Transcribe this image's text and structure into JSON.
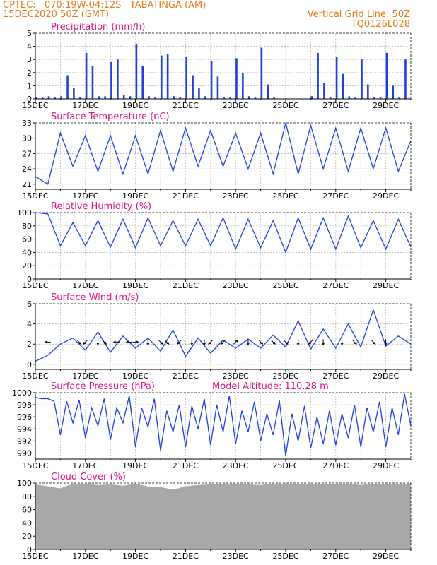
{
  "header": {
    "line1_left": "CPTEC:   070:19W-04:12S   TABATINGA (AM)",
    "line2_left": "15DEC2020 50Z (GMT)",
    "line2_right": "Vertical Grid Line: 50Z",
    "line3_right": "TQ0126L028",
    "color": "#e07a12"
  },
  "colors": {
    "series": "#1f3fe0",
    "title": "#e0107e",
    "cloud_fill": "#a8a8a8",
    "grid": "#b0b0b0"
  },
  "x_ticks": [
    "15DEC",
    "17DEC",
    "19DEC",
    "21DEC",
    "23DEC",
    "25DEC",
    "27DEC",
    "29DEC"
  ],
  "chart_data": [
    {
      "id": "precip",
      "type": "bar",
      "title": "Precipitation (mm/h)",
      "ylim": [
        0,
        5
      ],
      "yticks": [
        0,
        1,
        2,
        3,
        4,
        5
      ],
      "x": [
        "15DEC 00Z",
        "15DEC 06Z",
        "15DEC 12Z",
        "15DEC 18Z",
        "16DEC 00Z",
        "16DEC 06Z",
        "16DEC 12Z",
        "16DEC 18Z",
        "17DEC 00Z",
        "17DEC 06Z",
        "17DEC 12Z",
        "17DEC 18Z",
        "18DEC 00Z",
        "18DEC 06Z",
        "18DEC 12Z",
        "18DEC 18Z",
        "19DEC 00Z",
        "19DEC 06Z",
        "19DEC 12Z",
        "19DEC 18Z",
        "20DEC 00Z",
        "20DEC 06Z",
        "20DEC 12Z",
        "20DEC 18Z",
        "21DEC 00Z",
        "21DEC 06Z",
        "21DEC 12Z",
        "21DEC 18Z",
        "22DEC 00Z",
        "22DEC 06Z",
        "22DEC 12Z",
        "22DEC 18Z",
        "23DEC 00Z",
        "23DEC 06Z",
        "23DEC 12Z",
        "23DEC 18Z",
        "24DEC 00Z",
        "24DEC 06Z",
        "24DEC 12Z",
        "24DEC 18Z",
        "25DEC 00Z",
        "25DEC 06Z",
        "25DEC 12Z",
        "25DEC 18Z",
        "26DEC 00Z",
        "26DEC 06Z",
        "26DEC 12Z",
        "26DEC 18Z",
        "27DEC 00Z",
        "27DEC 06Z",
        "27DEC 12Z",
        "27DEC 18Z",
        "28DEC 00Z",
        "28DEC 06Z",
        "28DEC 12Z",
        "28DEC 18Z",
        "29DEC 00Z",
        "29DEC 06Z",
        "29DEC 12Z",
        "29DEC 18Z"
      ],
      "values": [
        0.1,
        0.1,
        0.2,
        0.1,
        0.2,
        1.8,
        0.8,
        0.1,
        3.5,
        2.5,
        0.2,
        0.2,
        2.8,
        3.0,
        0.3,
        0.2,
        4.2,
        2.5,
        0.2,
        0.1,
        3.3,
        3.4,
        0.2,
        0.1,
        3.2,
        1.8,
        0.8,
        0.2,
        2.9,
        1.7,
        0.1,
        0.1,
        3.1,
        2.0,
        0.2,
        0.1,
        3.9,
        1.1,
        0.1,
        0,
        0,
        0,
        0,
        0,
        0.2,
        3.5,
        1.2,
        0.1,
        3.2,
        1.9,
        0.2,
        0.1,
        3.0,
        1.1,
        0.1,
        0.1,
        3.5,
        1.0,
        0.1,
        3.0
      ]
    },
    {
      "id": "temp",
      "type": "line",
      "title": "Surface Temperature (nC)",
      "ylim": [
        20,
        33
      ],
      "yticks": [
        21,
        24,
        27,
        30,
        33
      ],
      "x": [
        "15DEC 00Z",
        "15DEC 12Z",
        "16DEC 00Z",
        "16DEC 12Z",
        "17DEC 00Z",
        "17DEC 12Z",
        "18DEC 00Z",
        "18DEC 12Z",
        "19DEC 00Z",
        "19DEC 12Z",
        "20DEC 00Z",
        "20DEC 12Z",
        "21DEC 00Z",
        "21DEC 12Z",
        "22DEC 00Z",
        "22DEC 12Z",
        "23DEC 00Z",
        "23DEC 12Z",
        "24DEC 00Z",
        "24DEC 12Z",
        "25DEC 00Z",
        "25DEC 12Z",
        "26DEC 00Z",
        "26DEC 12Z",
        "27DEC 00Z",
        "27DEC 12Z",
        "28DEC 00Z",
        "28DEC 12Z",
        "29DEC 00Z",
        "29DEC 12Z",
        "30DEC 00Z"
      ],
      "values": [
        22.5,
        21.0,
        31.0,
        24.5,
        30.5,
        23.5,
        30.5,
        23.0,
        30.5,
        23.0,
        31.5,
        23.5,
        32.0,
        24.5,
        31.5,
        24.5,
        31.0,
        24.0,
        31.0,
        23.0,
        33.0,
        23.0,
        32.5,
        24.0,
        32.0,
        23.5,
        32.0,
        24.0,
        32.0,
        23.5,
        29.5
      ]
    },
    {
      "id": "rh",
      "type": "line",
      "title": "Relative Humidity (%)",
      "ylim": [
        0,
        100
      ],
      "yticks": [
        0,
        20,
        40,
        60,
        80,
        100
      ],
      "x": [
        "15DEC 00Z",
        "15DEC 12Z",
        "16DEC 00Z",
        "16DEC 12Z",
        "17DEC 00Z",
        "17DEC 12Z",
        "18DEC 00Z",
        "18DEC 12Z",
        "19DEC 00Z",
        "19DEC 12Z",
        "20DEC 00Z",
        "20DEC 12Z",
        "21DEC 00Z",
        "21DEC 12Z",
        "22DEC 00Z",
        "22DEC 12Z",
        "23DEC 00Z",
        "23DEC 12Z",
        "24DEC 00Z",
        "24DEC 12Z",
        "25DEC 00Z",
        "25DEC 12Z",
        "26DEC 00Z",
        "26DEC 12Z",
        "27DEC 00Z",
        "27DEC 12Z",
        "28DEC 00Z",
        "28DEC 12Z",
        "29DEC 00Z",
        "29DEC 12Z",
        "30DEC 00Z"
      ],
      "values": [
        100,
        98,
        50,
        85,
        50,
        88,
        48,
        90,
        47,
        92,
        50,
        88,
        50,
        90,
        50,
        92,
        45,
        90,
        47,
        88,
        40,
        92,
        45,
        92,
        45,
        95,
        47,
        88,
        45,
        90,
        48
      ]
    },
    {
      "id": "wind",
      "type": "line",
      "title": "Surface Wind (m/s)",
      "ylim": [
        -0.5,
        6
      ],
      "yticks": [
        0,
        2,
        4,
        6
      ],
      "x": [
        "15DEC 00Z",
        "15DEC 12Z",
        "16DEC 00Z",
        "16DEC 12Z",
        "17DEC 00Z",
        "17DEC 12Z",
        "18DEC 00Z",
        "18DEC 12Z",
        "19DEC 00Z",
        "19DEC 12Z",
        "20DEC 00Z",
        "20DEC 12Z",
        "21DEC 00Z",
        "21DEC 12Z",
        "22DEC 00Z",
        "22DEC 12Z",
        "23DEC 00Z",
        "23DEC 12Z",
        "24DEC 00Z",
        "24DEC 12Z",
        "25DEC 00Z",
        "25DEC 12Z",
        "26DEC 00Z",
        "26DEC 12Z",
        "27DEC 00Z",
        "27DEC 12Z",
        "28DEC 00Z",
        "28DEC 12Z",
        "29DEC 00Z",
        "29DEC 12Z",
        "30DEC 00Z"
      ],
      "values": [
        0.3,
        0.9,
        2.0,
        2.6,
        1.4,
        3.2,
        1.2,
        2.8,
        1.6,
        2.6,
        1.3,
        3.4,
        0.8,
        2.6,
        1.1,
        2.4,
        1.6,
        2.5,
        1.6,
        2.9,
        1.7,
        4.3,
        1.5,
        3.5,
        1.6,
        4.0,
        1.7,
        5.4,
        1.8,
        2.8,
        2.0
      ],
      "arrows": [
        {
          "x": "15DEC 12Z",
          "dir": "W"
        },
        {
          "x": "16DEC 18Z",
          "dir": "SE"
        },
        {
          "x": "17DEC 00Z",
          "dir": "SW"
        },
        {
          "x": "17DEC 12Z",
          "dir": "S"
        },
        {
          "x": "17DEC 18Z",
          "dir": "SE"
        },
        {
          "x": "18DEC 06Z",
          "dir": "W"
        },
        {
          "x": "18DEC 18Z",
          "dir": "W"
        },
        {
          "x": "19DEC 00Z",
          "dir": "E"
        },
        {
          "x": "19DEC 12Z",
          "dir": "S"
        },
        {
          "x": "20DEC 00Z",
          "dir": "SE"
        },
        {
          "x": "20DEC 06Z",
          "dir": "SE"
        },
        {
          "x": "20DEC 18Z",
          "dir": "SW"
        },
        {
          "x": "21DEC 06Z",
          "dir": "S"
        },
        {
          "x": "21DEC 18Z",
          "dir": "S"
        },
        {
          "x": "22DEC 00Z",
          "dir": "SW"
        },
        {
          "x": "22DEC 12Z",
          "dir": "SW"
        },
        {
          "x": "23DEC 00Z",
          "dir": "NE"
        },
        {
          "x": "23DEC 12Z",
          "dir": "S"
        },
        {
          "x": "24DEC 00Z",
          "dir": "SE"
        },
        {
          "x": "24DEC 12Z",
          "dir": "SE"
        },
        {
          "x": "25DEC 00Z",
          "dir": "SE"
        },
        {
          "x": "25DEC 12Z",
          "dir": "S"
        },
        {
          "x": "26DEC 00Z",
          "dir": "SW"
        },
        {
          "x": "26DEC 12Z",
          "dir": "S"
        },
        {
          "x": "27DEC 06Z",
          "dir": "S"
        },
        {
          "x": "27DEC 18Z",
          "dir": "SE"
        },
        {
          "x": "28DEC 12Z",
          "dir": "SE"
        },
        {
          "x": "29DEC 00Z",
          "dir": "S"
        }
      ]
    },
    {
      "id": "pres",
      "type": "line",
      "title": "Surface Pressure (hPa)",
      "annotation": "Model Altitude: 110.28 m",
      "ylim": [
        989,
        1000
      ],
      "yticks": [
        990,
        992,
        994,
        996,
        998,
        1000
      ],
      "x": [
        "15DEC 00Z",
        "15DEC 06Z",
        "15DEC 12Z",
        "15DEC 18Z",
        "16DEC 00Z",
        "16DEC 06Z",
        "16DEC 12Z",
        "16DEC 18Z",
        "17DEC 00Z",
        "17DEC 06Z",
        "17DEC 12Z",
        "17DEC 18Z",
        "18DEC 00Z",
        "18DEC 06Z",
        "18DEC 12Z",
        "18DEC 18Z",
        "19DEC 00Z",
        "19DEC 06Z",
        "19DEC 12Z",
        "19DEC 18Z",
        "20DEC 00Z",
        "20DEC 06Z",
        "20DEC 12Z",
        "20DEC 18Z",
        "21DEC 00Z",
        "21DEC 06Z",
        "21DEC 12Z",
        "21DEC 18Z",
        "22DEC 00Z",
        "22DEC 06Z",
        "22DEC 12Z",
        "22DEC 18Z",
        "23DEC 00Z",
        "23DEC 06Z",
        "23DEC 12Z",
        "23DEC 18Z",
        "24DEC 00Z",
        "24DEC 06Z",
        "24DEC 12Z",
        "24DEC 18Z",
        "25DEC 00Z",
        "25DEC 06Z",
        "25DEC 12Z",
        "25DEC 18Z",
        "26DEC 00Z",
        "26DEC 06Z",
        "26DEC 12Z",
        "26DEC 18Z",
        "27DEC 00Z",
        "27DEC 06Z",
        "27DEC 12Z",
        "27DEC 18Z",
        "28DEC 00Z",
        "28DEC 06Z",
        "28DEC 12Z",
        "28DEC 18Z",
        "29DEC 00Z",
        "29DEC 06Z",
        "29DEC 12Z",
        "29DEC 18Z",
        "30DEC 00Z"
      ],
      "values": [
        999.2,
        999.0,
        999.0,
        998.6,
        993.0,
        998.6,
        995.0,
        998.8,
        992.5,
        997.5,
        994.5,
        999.0,
        992.2,
        997.5,
        995.0,
        999.5,
        991.0,
        997.5,
        994.3,
        999.0,
        990.4,
        997.0,
        993.5,
        998.0,
        991.0,
        997.8,
        994.0,
        999.0,
        991.3,
        998.0,
        993.5,
        999.5,
        991.5,
        997.0,
        993.5,
        998.5,
        992.0,
        996.5,
        993.0,
        998.7,
        989.5,
        996.5,
        992.0,
        997.8,
        990.8,
        996.0,
        991.5,
        997.0,
        991.3,
        996.5,
        992.5,
        998.0,
        991.0,
        997.5,
        993.5,
        998.5,
        991.0,
        997.5,
        993.0,
        999.8,
        994.5
      ]
    },
    {
      "id": "cloud",
      "type": "area",
      "title": "Cloud Cover (%)",
      "ylim": [
        0,
        100
      ],
      "yticks": [
        0,
        20,
        40,
        60,
        80,
        100
      ],
      "x": [
        "15DEC 00Z",
        "15DEC 12Z",
        "16DEC 00Z",
        "16DEC 12Z",
        "17DEC 00Z",
        "17DEC 12Z",
        "18DEC 00Z",
        "18DEC 12Z",
        "19DEC 00Z",
        "19DEC 12Z",
        "20DEC 00Z",
        "20DEC 12Z",
        "21DEC 00Z",
        "21DEC 12Z",
        "22DEC 00Z",
        "22DEC 12Z",
        "23DEC 00Z",
        "23DEC 12Z",
        "24DEC 00Z",
        "24DEC 12Z",
        "25DEC 00Z",
        "25DEC 12Z",
        "26DEC 00Z",
        "26DEC 12Z",
        "27DEC 00Z",
        "27DEC 12Z",
        "28DEC 00Z",
        "28DEC 12Z",
        "29DEC 00Z",
        "29DEC 12Z",
        "30DEC 00Z"
      ],
      "values": [
        98,
        95,
        92,
        99,
        99,
        97,
        98,
        96,
        99,
        95,
        94,
        90,
        95,
        97,
        98,
        99,
        99,
        98,
        97,
        99,
        99,
        98,
        99,
        99,
        98,
        99,
        97,
        99,
        98,
        99,
        99
      ]
    }
  ]
}
